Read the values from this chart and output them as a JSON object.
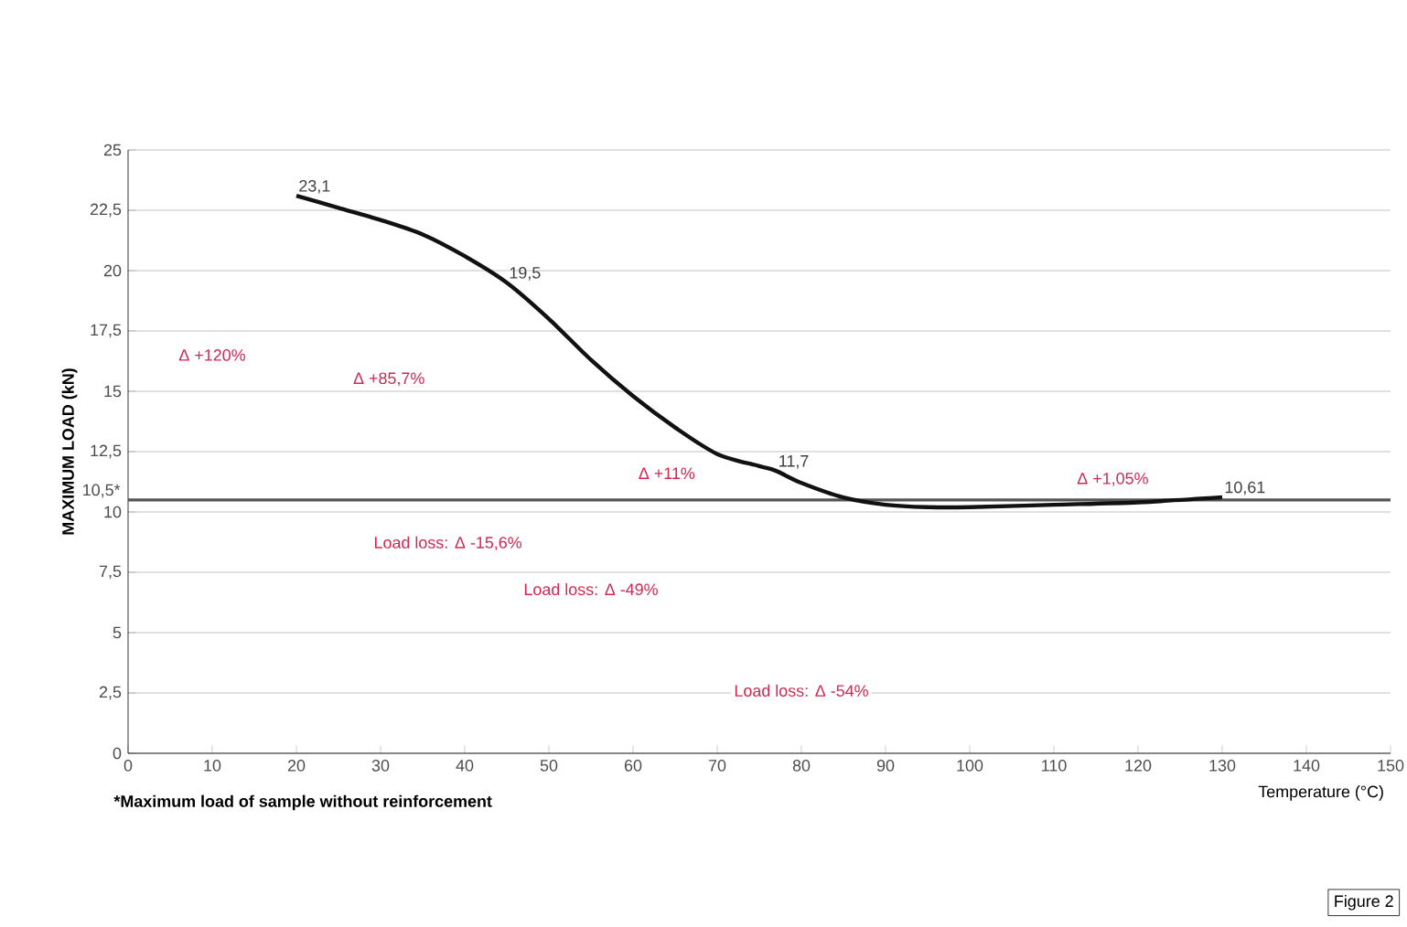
{
  "chart_data": {
    "type": "line",
    "xlabel": "Temperature (°C)",
    "ylabel": "MAXIMUM LOAD (kN)",
    "series": [
      {
        "color": "#111111",
        "x": [
          20,
          25,
          30,
          35,
          40,
          45,
          50,
          55,
          60,
          65,
          70,
          75,
          77,
          80,
          85,
          90,
          95,
          100,
          110,
          120,
          130
        ],
        "values": [
          23.1,
          22.6,
          22.1,
          21.5,
          20.6,
          19.5,
          18.0,
          16.3,
          14.8,
          13.5,
          12.4,
          11.9,
          11.7,
          11.2,
          10.6,
          10.3,
          10.2,
          10.2,
          10.3,
          10.4,
          10.61
        ],
        "value_labels": [
          "23,1",
          null,
          null,
          null,
          null,
          "19,5",
          null,
          null,
          null,
          null,
          null,
          null,
          "11,7",
          null,
          null,
          null,
          null,
          null,
          null,
          null,
          "10,61"
        ]
      }
    ],
    "xlim": [
      0,
      150
    ],
    "ylim": [
      0,
      25
    ],
    "xticks": [
      0,
      10,
      20,
      30,
      40,
      50,
      60,
      70,
      80,
      90,
      100,
      110,
      120,
      130,
      140,
      150
    ],
    "yticks": [
      0,
      {
        "value": 2.5,
        "label": "2,5"
      },
      5,
      {
        "value": 7.5,
        "label": "7,5"
      },
      10,
      {
        "value": 12.5,
        "label": "12,5"
      },
      15,
      {
        "value": 17.5,
        "label": "17,5"
      },
      20,
      {
        "value": 22.5,
        "label": "22,5"
      },
      25
    ],
    "grid": "y",
    "marker": "none",
    "line_style": "solid",
    "ref_lines": [
      {
        "axis": "y",
        "value": 10.5,
        "label": "10,5*",
        "color": "#555555"
      }
    ],
    "annotations": [
      "Δ +120%",
      "Δ +85,7%",
      "Δ +11%",
      "Δ +1,05%",
      "Load loss: Δ -15,6%",
      "Load loss: Δ -49%",
      "Load loss: Δ -54%",
      "*Maximum load of sample without reinforcement",
      "Figure 2"
    ]
  }
}
